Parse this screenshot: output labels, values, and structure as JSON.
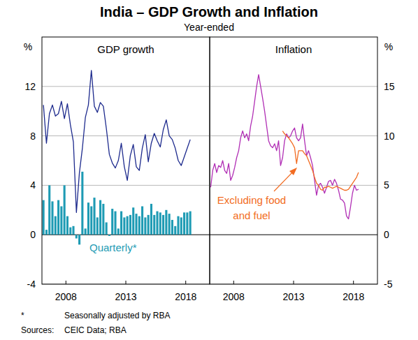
{
  "header": {
    "title": "India – GDP Growth and Inflation",
    "subtitle": "Year-ended"
  },
  "footer": {
    "note_mark": "*",
    "note": "Seasonally adjusted by RBA",
    "sources_label": "Sources:",
    "sources": "CEIC Data; RBA"
  },
  "chart_data": [
    {
      "type": "line",
      "title": "GDP growth",
      "y_label": "%",
      "x": [
        2006.125,
        2006.375,
        2006.625,
        2006.875,
        2007.125,
        2007.375,
        2007.625,
        2007.875,
        2008.125,
        2008.375,
        2008.625,
        2008.875,
        2009.125,
        2009.375,
        2009.625,
        2009.875,
        2010.125,
        2010.375,
        2010.625,
        2010.875,
        2011.125,
        2011.375,
        2011.625,
        2011.875,
        2012.125,
        2012.375,
        2012.625,
        2012.875,
        2013.125,
        2013.375,
        2013.625,
        2013.875,
        2014.125,
        2014.375,
        2014.625,
        2014.875,
        2015.125,
        2015.375,
        2015.625,
        2015.875,
        2016.125,
        2016.375,
        2016.625,
        2016.875,
        2017.125,
        2017.375,
        2017.625,
        2017.875,
        2018.125,
        2018.375
      ],
      "xlim": [
        2006,
        2020
      ],
      "xticks": [
        2008,
        2013,
        2018
      ],
      "ylim": [
        -4,
        16
      ],
      "yticks": [
        -4,
        0,
        4,
        8,
        12
      ],
      "grid": true,
      "series": [
        {
          "name": "Quarterly*",
          "type": "bar",
          "color": "#1e9bb4",
          "values": [
            2.8,
            0.4,
            4.0,
            2.7,
            1.5,
            2.8,
            2.3,
            4.0,
            1.5,
            0.6,
            0.7,
            -0.3,
            -0.8,
            5.1,
            0.5,
            2.6,
            2.3,
            3.0,
            1.4,
            2.8,
            2.5,
            1.0,
            -0.1,
            2.1,
            1.9,
            0.5,
            1.9,
            1.4,
            1.5,
            1.6,
            2.2,
            1.7,
            1.5,
            2.3,
            1.4,
            1.6,
            2.5,
            1.6,
            1.9,
            1.8,
            1.6,
            2.0,
            1.7,
            1.2,
            0.7,
            1.5,
            1.4,
            1.8,
            1.8,
            1.9
          ]
        },
        {
          "type": "line",
          "color": "#1d2a8d",
          "values": [
            10.5,
            7.4,
            9.8,
            10.5,
            9.6,
            9.8,
            10.8,
            9.4,
            10.6,
            8.9,
            7.5,
            1.8,
            5.0,
            7.0,
            9.5,
            10.5,
            13.3,
            10.4,
            9.9,
            10.7,
            10.4,
            8.6,
            6.5,
            5.8,
            5.4,
            6.0,
            7.4,
            5.5,
            4.4,
            6.4,
            7.3,
            5.5,
            5.2,
            7.0,
            8.1,
            5.9,
            7.4,
            8.2,
            7.6,
            7.1,
            8.5,
            9.3,
            8.0,
            7.7,
            7.0,
            6.0,
            5.6,
            6.3,
            7.0,
            7.7
          ]
        }
      ]
    },
    {
      "type": "line",
      "title": "Inflation",
      "y_label": "%",
      "x": [
        2006.083,
        2006.25,
        2006.417,
        2006.583,
        2006.75,
        2006.917,
        2007.083,
        2007.25,
        2007.417,
        2007.583,
        2007.75,
        2007.917,
        2008.083,
        2008.25,
        2008.417,
        2008.583,
        2008.75,
        2008.917,
        2009.083,
        2009.25,
        2009.417,
        2009.583,
        2009.75,
        2009.917,
        2010.083,
        2010.25,
        2010.417,
        2010.583,
        2010.75,
        2010.917,
        2011.083,
        2011.25,
        2011.417,
        2011.583,
        2011.75,
        2011.917,
        2012.083,
        2012.25,
        2012.417,
        2012.583,
        2012.75,
        2012.917,
        2013.083,
        2013.25,
        2013.417,
        2013.583,
        2013.75,
        2013.917,
        2014.083,
        2014.25,
        2014.417,
        2014.583,
        2014.75,
        2014.917,
        2015.083,
        2015.25,
        2015.417,
        2015.583,
        2015.75,
        2015.917,
        2016.083,
        2016.25,
        2016.417,
        2016.583,
        2016.75,
        2016.917,
        2017.083,
        2017.25,
        2017.417,
        2017.583,
        2017.75,
        2017.917,
        2018.083,
        2018.25,
        2018.417
      ],
      "xlim": [
        2006,
        2020
      ],
      "xticks": [
        2008,
        2013,
        2018
      ],
      "ylim": [
        -5,
        20
      ],
      "yticks": [
        -5,
        0,
        5,
        10,
        15
      ],
      "grid": true,
      "series": [
        {
          "type": "line",
          "color": "#b12fb5",
          "values": [
            4.8,
            6.5,
            7.2,
            6.3,
            7.0,
            6.8,
            7.5,
            6.5,
            6.2,
            7.2,
            5.5,
            6.0,
            6.8,
            7.8,
            8.5,
            9.8,
            10.5,
            9.8,
            10.2,
            9.5,
            11.0,
            12.0,
            13.5,
            15.0,
            16.2,
            15.0,
            13.8,
            12.5,
            11.0,
            9.5,
            9.0,
            8.8,
            9.2,
            8.5,
            9.5,
            7.0,
            7.8,
            9.5,
            10.2,
            9.8,
            10.0,
            10.5,
            10.8,
            9.8,
            9.5,
            9.8,
            11.2,
            9.5,
            8.0,
            8.5,
            7.8,
            7.0,
            5.5,
            4.0,
            5.0,
            5.2,
            4.8,
            4.2,
            4.8,
            5.4,
            5.5,
            5.0,
            5.6,
            5.2,
            4.5,
            3.6,
            3.5,
            3.2,
            1.9,
            1.6,
            2.8,
            4.2,
            5.0,
            4.5,
            4.6
          ]
        },
        {
          "name": "Excluding food and fuel",
          "type": "line",
          "color": "#f26c22",
          "values": [
            null,
            null,
            null,
            null,
            null,
            null,
            null,
            null,
            null,
            null,
            null,
            null,
            null,
            null,
            null,
            null,
            null,
            null,
            null,
            null,
            null,
            null,
            null,
            null,
            null,
            null,
            null,
            null,
            null,
            null,
            null,
            null,
            null,
            null,
            null,
            null,
            10.5,
            10.2,
            10.0,
            9.8,
            9.5,
            9.2,
            8.8,
            7.2,
            8.5,
            8.5,
            8.5,
            8.2,
            8.0,
            7.5,
            7.0,
            6.5,
            5.8,
            5.2,
            5.0,
            4.6,
            4.5,
            4.8,
            4.8,
            4.9,
            4.8,
            4.7,
            4.8,
            4.9,
            4.8,
            4.7,
            4.6,
            4.5,
            4.5,
            4.6,
            4.9,
            5.2,
            5.5,
            5.8,
            6.3
          ]
        }
      ]
    }
  ]
}
